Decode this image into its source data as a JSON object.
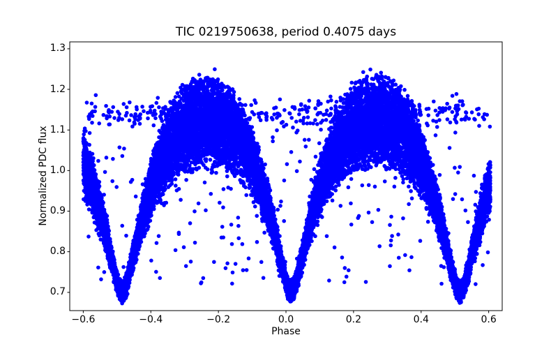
{
  "figure": {
    "background": "#ffffff"
  },
  "chart_data": {
    "type": "scatter",
    "title": "TIC 0219750638, period 0.4075 days",
    "xlabel": "Phase",
    "ylabel": "Normalized PDC flux",
    "xlim": [
      -0.64,
      0.64
    ],
    "ylim": [
      0.655,
      1.317
    ],
    "xticks": [
      -0.6,
      -0.4,
      -0.2,
      0.0,
      0.2,
      0.4,
      0.6
    ],
    "xtick_labels": [
      "−0.6",
      "−0.4",
      "−0.2",
      "0.0",
      "0.2",
      "0.4",
      "0.6"
    ],
    "yticks": [
      0.7,
      0.8,
      0.9,
      1.0,
      1.1,
      1.2,
      1.3
    ],
    "ytick_labels": [
      "0.7",
      "0.8",
      "0.9",
      "1.0",
      "1.1",
      "1.2",
      "1.3"
    ],
    "grid": false,
    "legend": null,
    "marker": {
      "color": "#0000ff",
      "radius_px": 2.8
    },
    "axis_color": "#000000",
    "model": {
      "description": "Phase-folded eclipsing-binary (contact binary) light curve with equal-depth V-shaped minima, thick scatter fan widest at maxima, a sparse horizontal outlier band near flux 1.14, and sparse uniform outliers between branches.",
      "phase_range": [
        -0.6,
        0.605
      ],
      "primary_minimum_phase": 0.015,
      "secondary_minimum_phase": 0.515,
      "maxima_phases": [
        -0.235,
        0.265
      ],
      "minimum_flux": 0.7,
      "deepest_point_flux": 0.686,
      "maximum_dense_flux_band": [
        1.02,
        1.24
      ],
      "highest_point_flux": 1.29,
      "mean_curve": {
        "u_phase_from_minimum": [
          0.0,
          0.01,
          0.02,
          0.03,
          0.045,
          0.06,
          0.08,
          0.1,
          0.125,
          0.15,
          0.175,
          0.2,
          0.225,
          0.25
        ],
        "flux": [
          0.7,
          0.712,
          0.742,
          0.778,
          0.832,
          0.885,
          0.943,
          0.99,
          1.038,
          1.072,
          1.095,
          1.11,
          1.12,
          1.125
        ]
      },
      "populations": [
        {
          "name": "folded-light-curve",
          "count": 17000,
          "amplitude_jitter_frac": 0.28,
          "flux_noise": 0.03
        },
        {
          "name": "outlier-band",
          "count": 320,
          "flux_center": 1.14,
          "flux_jitter": 0.035
        },
        {
          "name": "sparse-outliers",
          "count": 280,
          "flux_min": 0.72,
          "flux_max": 1.19
        }
      ],
      "seed": 20219
    }
  }
}
